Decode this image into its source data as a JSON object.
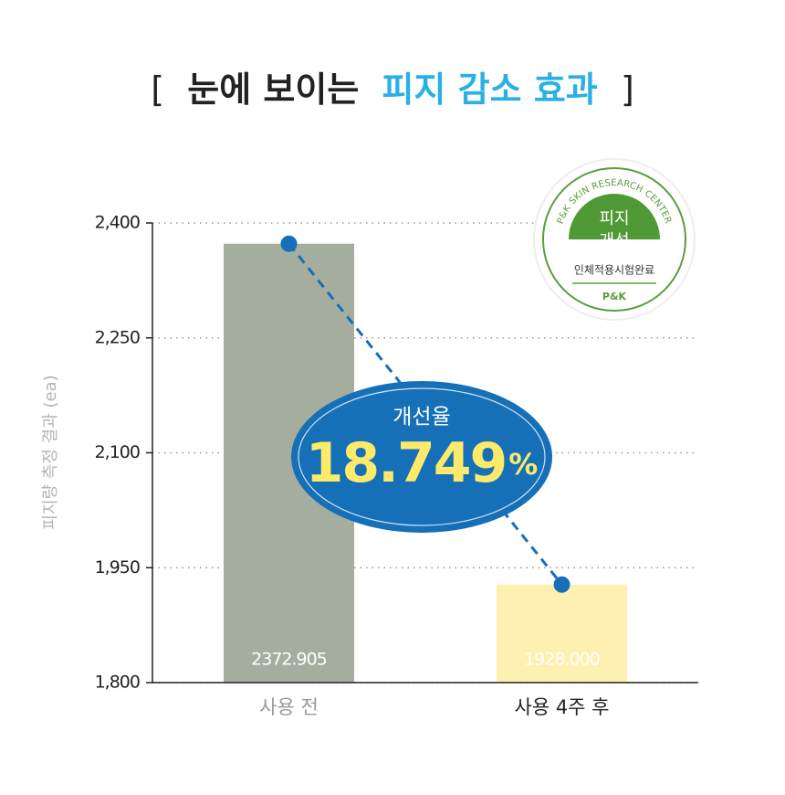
{
  "chart_data": {
    "type": "bar",
    "title": [
      "[",
      "눈에 보이는",
      "피지 감소 효과",
      "]"
    ],
    "y_label": "피지량 측정 결과 (ea)",
    "categories": [
      "사용 전",
      "사용 4주 후"
    ],
    "values": [
      2372.905,
      1928.0
    ],
    "value_labels": [
      "2372.905",
      "1928.000"
    ],
    "colors": [
      "#a5ae9e",
      "#fdf0b0"
    ],
    "line_color": "#1670b7",
    "ylim": [
      1800,
      2400
    ],
    "yticks": [
      {
        "value": 1800,
        "label": "1,800"
      },
      {
        "value": 1950,
        "label": "1,950"
      },
      {
        "value": 2100,
        "label": "2,100"
      },
      {
        "value": 2250,
        "label": "2,250"
      },
      {
        "value": 2400,
        "label": "2,400"
      }
    ],
    "grid": true,
    "annotation": {
      "label": "개선율",
      "value": 18.749,
      "unit": "%"
    },
    "badge": {
      "ring": "P&K SKIN RESEARCH CENTER",
      "line1": "피지",
      "line2": "개선",
      "note": "인체적용시험완료",
      "logo": "P&K"
    }
  }
}
